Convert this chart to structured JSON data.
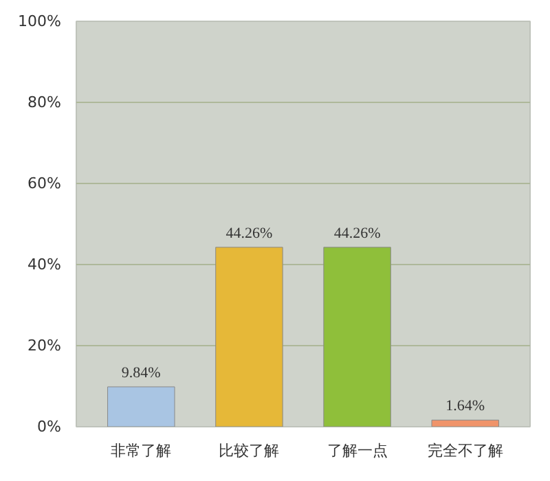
{
  "chart_data": {
    "type": "bar",
    "categories": [
      "非常了解",
      "比较了解",
      "了解一点",
      "完全不了解"
    ],
    "values": [
      9.84,
      44.26,
      44.26,
      1.64
    ],
    "colors": [
      "#a9c5e3",
      "#e6b838",
      "#8fbf3a",
      "#f0946a"
    ],
    "value_labels": [
      "9.84%",
      "44.26%",
      "44.26%",
      "1.64%"
    ],
    "ylim": [
      0,
      100
    ],
    "yticks": [
      {
        "value": 0,
        "label": "0%"
      },
      {
        "value": 20,
        "label": "20%"
      },
      {
        "value": 40,
        "label": "40%"
      },
      {
        "value": 60,
        "label": "60%"
      },
      {
        "value": 80,
        "label": "80%"
      },
      {
        "value": 100,
        "label": "100%"
      }
    ],
    "grid": "y"
  }
}
